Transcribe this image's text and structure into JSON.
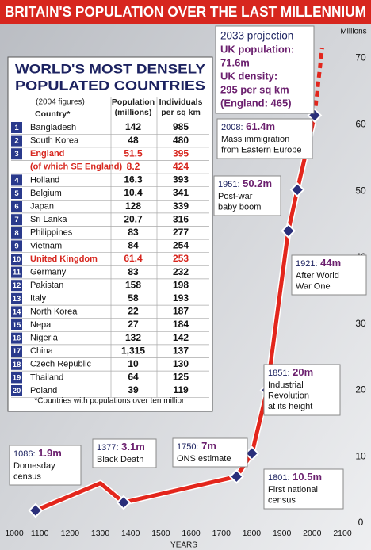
{
  "title": "BRITAIN'S POPULATION OVER THE LAST MILLENNIUM",
  "chart_data": {
    "type": "line",
    "y_label": "Millions",
    "x_label": "YEARS",
    "x": [
      1086,
      1300,
      1377,
      1750,
      1801,
      1851,
      1921,
      1951,
      2008,
      2033
    ],
    "series": [
      {
        "color": "#e3261c",
        "dash": false,
        "values": [
          1.9,
          6,
          3.1,
          7,
          10.5,
          20,
          44,
          50.2,
          61.4,
          null
        ],
        "value_labels": [
          "1.9m",
          null,
          "3.1m",
          "7m",
          "10.5m",
          "20m",
          "44m",
          "50.2m",
          "61.4m",
          null
        ]
      },
      {
        "color": "#e3261c",
        "dash": true,
        "values": [
          null,
          null,
          null,
          null,
          null,
          null,
          null,
          null,
          61.4,
          71.6
        ],
        "value_labels": [
          null,
          null,
          null,
          null,
          null,
          null,
          null,
          null,
          null,
          "71.6m"
        ]
      }
    ],
    "annotations": [
      {
        "label": "1086:",
        "lines": [
          "Domesday",
          "census"
        ]
      },
      null,
      {
        "label": "1377:",
        "lines": [
          "Black Death"
        ]
      },
      {
        "label": "1750:",
        "lines": [
          "ONS estimate"
        ]
      },
      {
        "label": "1801:",
        "lines": [
          "First national",
          "census"
        ]
      },
      {
        "label": "1851:",
        "lines": [
          "Industrial",
          "Revolution",
          "at its height"
        ]
      },
      {
        "label": "1921:",
        "lines": [
          "After World",
          "War One"
        ]
      },
      {
        "label": "1951:",
        "lines": [
          "Post-war",
          "baby boom"
        ]
      },
      {
        "label": "2008:",
        "lines": [
          "Mass immigration",
          "from Eastern Europe"
        ]
      },
      null
    ],
    "projection_box": {
      "title": "2033 projection",
      "population_label": "UK population:",
      "density_label": "UK density:",
      "density": "295 per sq km",
      "england": "(England: 465)"
    },
    "xlim": [
      1000,
      2100
    ],
    "xticks": [
      1000,
      1100,
      1200,
      1300,
      1400,
      1500,
      1600,
      1700,
      1800,
      1900,
      2000,
      2100
    ],
    "ylim": [
      0,
      74
    ],
    "yticks": [
      0,
      10,
      20,
      30,
      40,
      50,
      60,
      70
    ],
    "grid": false
  },
  "table": {
    "title": [
      "WORLD'S MOST DENSELY",
      "POPULATED COUNTRIES"
    ],
    "note": "(2004 figures)",
    "columns": [
      [
        "Country*"
      ],
      [
        "Population",
        "(millions)"
      ],
      [
        "Individuals",
        "per sq km"
      ]
    ],
    "rows": [
      {
        "rank": "1",
        "country": "Bangladesh",
        "population": "142",
        "density": "985"
      },
      {
        "rank": "2",
        "country": "South Korea",
        "population": "48",
        "density": "480"
      },
      {
        "rank": "3",
        "country": "England",
        "population": "51.5",
        "density": "395",
        "highlight": true
      },
      {
        "country": "(of which SE England)",
        "population": "8.2",
        "density": "424",
        "highlight": true
      },
      {
        "rank": "4",
        "country": "Holland",
        "population": "16.3",
        "density": "393"
      },
      {
        "rank": "5",
        "country": "Belgium",
        "population": "10.4",
        "density": "341"
      },
      {
        "rank": "6",
        "country": "Japan",
        "population": "128",
        "density": "339"
      },
      {
        "rank": "7",
        "country": "Sri Lanka",
        "population": "20.7",
        "density": "316"
      },
      {
        "rank": "8",
        "country": "Philippines",
        "population": "83",
        "density": "277"
      },
      {
        "rank": "9",
        "country": "Vietnam",
        "population": "84",
        "density": "254"
      },
      {
        "rank": "10",
        "country": "United Kingdom",
        "population": "61.4",
        "density": "253",
        "highlight": true
      },
      {
        "rank": "11",
        "country": "Germany",
        "population": "83",
        "density": "232"
      },
      {
        "rank": "12",
        "country": "Pakistan",
        "population": "158",
        "density": "198"
      },
      {
        "rank": "13",
        "country": "Italy",
        "population": "58",
        "density": "193"
      },
      {
        "rank": "14",
        "country": "North Korea",
        "population": "22",
        "density": "187"
      },
      {
        "rank": "15",
        "country": "Nepal",
        "population": "27",
        "density": "184"
      },
      {
        "rank": "16",
        "country": "Nigeria",
        "population": "132",
        "density": "142"
      },
      {
        "rank": "17",
        "country": "China",
        "population": "1,315",
        "density": "137"
      },
      {
        "rank": "18",
        "country": "Czech Republic",
        "population": "10",
        "density": "130"
      },
      {
        "rank": "19",
        "country": "Thailand",
        "population": "64",
        "density": "125"
      },
      {
        "rank": "20",
        "country": "Poland",
        "population": "39",
        "density": "119"
      }
    ],
    "footnote": "*Countries with populations over ten million"
  }
}
